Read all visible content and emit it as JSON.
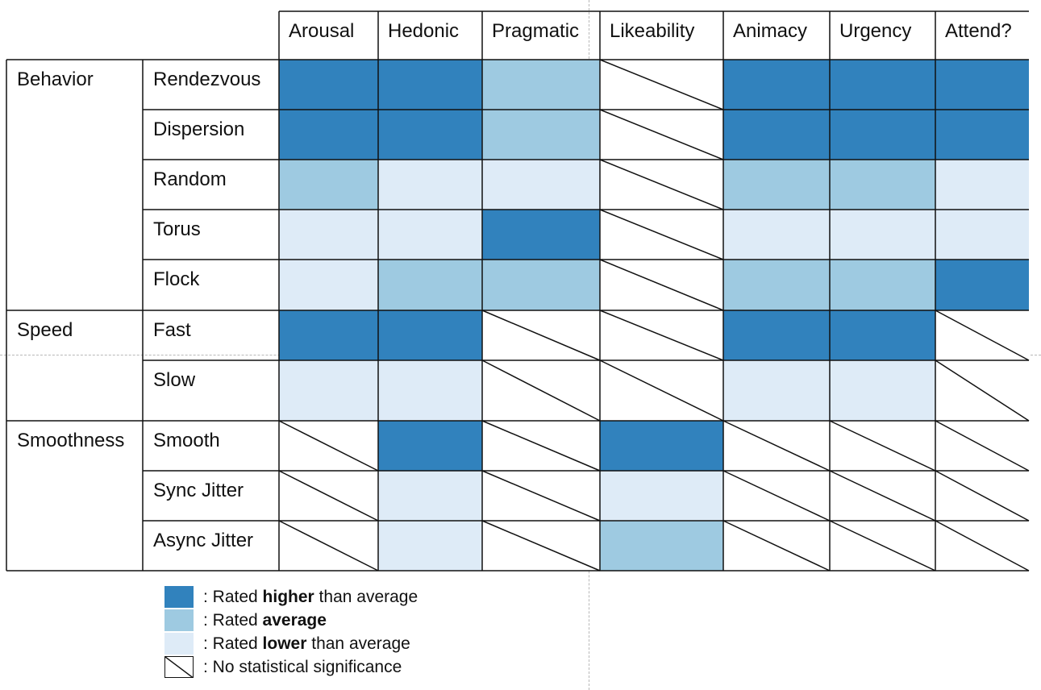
{
  "columns": [
    "Arousal",
    "Hedonic",
    "Pragmatic",
    "Likeability",
    "Animacy",
    "Urgency",
    "Attend?"
  ],
  "groups": [
    {
      "label": "Behavior",
      "rows": [
        {
          "label": "Rendezvous",
          "ratings": [
            "high",
            "high",
            "avg",
            "ns",
            "high",
            "high",
            "high"
          ]
        },
        {
          "label": "Dispersion",
          "ratings": [
            "high",
            "high",
            "avg",
            "ns",
            "high",
            "high",
            "high"
          ]
        },
        {
          "label": "Random",
          "ratings": [
            "avg",
            "low",
            "low",
            "ns",
            "avg",
            "avg",
            "low"
          ]
        },
        {
          "label": "Torus",
          "ratings": [
            "low",
            "low",
            "high",
            "ns",
            "low",
            "low",
            "low"
          ]
        },
        {
          "label": "Flock",
          "ratings": [
            "low",
            "avg",
            "avg",
            "ns",
            "avg",
            "avg",
            "high"
          ]
        }
      ]
    },
    {
      "label": "Speed",
      "rows": [
        {
          "label": "Fast",
          "ratings": [
            "high",
            "high",
            "ns",
            "ns",
            "high",
            "high",
            "ns"
          ]
        },
        {
          "label": "Slow",
          "ratings": [
            "low",
            "low",
            "ns",
            "ns",
            "low",
            "low",
            "ns"
          ]
        }
      ]
    },
    {
      "label": "Smoothness",
      "rows": [
        {
          "label": "Smooth",
          "ratings": [
            "ns",
            "high",
            "ns",
            "high",
            "ns",
            "ns",
            "ns"
          ]
        },
        {
          "label": "Sync Jitter",
          "ratings": [
            "ns",
            "low",
            "ns",
            "low",
            "ns",
            "ns",
            "ns"
          ]
        },
        {
          "label": "Async Jitter",
          "ratings": [
            "ns",
            "low",
            "ns",
            "avg",
            "ns",
            "ns",
            "ns"
          ]
        }
      ]
    }
  ],
  "colors": {
    "high": "#3182bd",
    "avg": "#9ecae1",
    "low": "#deebf7",
    "ns": "#ffffff",
    "line": "#111111"
  },
  "legend": {
    "high": {
      "prefix": ": Rated ",
      "bold": "higher",
      "suffix": " than average"
    },
    "avg": {
      "prefix": ": Rated ",
      "bold": "average",
      "suffix": ""
    },
    "low": {
      "prefix": ": Rated ",
      "bold": "lower",
      "suffix": " than average"
    },
    "ns": {
      "text": ": No statistical significance"
    }
  }
}
